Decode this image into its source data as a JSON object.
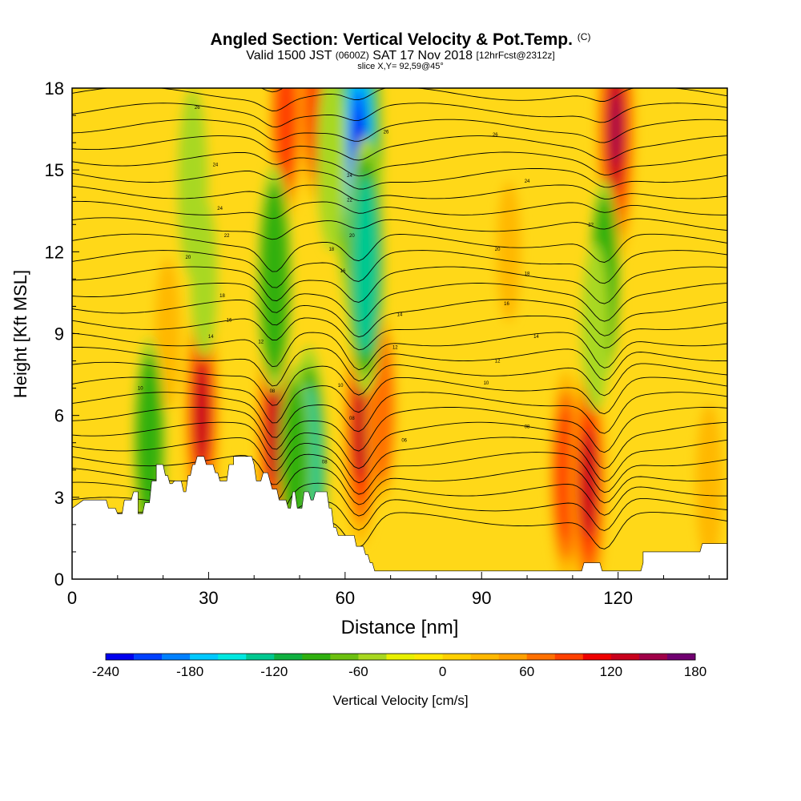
{
  "title": {
    "main": "Angled Section: Vertical Velocity & Pot.Temp.",
    "main_suffix": "(C)",
    "valid_prefix": "Valid 1500 JST",
    "valid_utc": "(0600Z)",
    "valid_date": "SAT 17 Nov 2018",
    "forecast": "[12hrFcst@2312z]",
    "slice": "slice X,Y= 92,59@45°"
  },
  "chart_data": {
    "type": "heatmap",
    "xlabel": "Distance [nm]",
    "ylabel": "Height [Kft MSL]",
    "xlim": [
      0,
      144
    ],
    "ylim": [
      0,
      18
    ],
    "x_ticks": [
      0,
      30,
      60,
      90,
      120
    ],
    "y_ticks": [
      0,
      3,
      6,
      9,
      12,
      15,
      18
    ],
    "colorbar": {
      "label": "Vertical Velocity [cm/s]",
      "min": -240,
      "max": 180,
      "step": 20,
      "tick_labels": [
        "-240",
        "-180",
        "-120",
        "-60",
        "0",
        "60",
        "120",
        "180"
      ],
      "tick_values": [
        -240,
        -180,
        -120,
        -60,
        0,
        60,
        120,
        180
      ],
      "colors": [
        "#0000ee",
        "#0040ff",
        "#0080ff",
        "#00c8ff",
        "#00e8e0",
        "#00c890",
        "#10b040",
        "#30b010",
        "#6cc010",
        "#a8d820",
        "#e8f000",
        "#ffe800",
        "#ffd000",
        "#ffb800",
        "#ffa000",
        "#ff7000",
        "#ff4000",
        "#ee0000",
        "#c8001c",
        "#a00048",
        "#700070"
      ]
    },
    "terrain_kft": [
      [
        0,
        2.6
      ],
      [
        2.5,
        2.9
      ],
      [
        7.5,
        2.9
      ],
      [
        8,
        2.6
      ],
      [
        9.5,
        2.6
      ],
      [
        10,
        2.4
      ],
      [
        11,
        2.4
      ],
      [
        11.5,
        2.9
      ],
      [
        13,
        2.9
      ],
      [
        13.5,
        3.2
      ],
      [
        14.5,
        3.2
      ],
      [
        14.5,
        2.4
      ],
      [
        15.5,
        2.4
      ],
      [
        16,
        2.8
      ],
      [
        17,
        2.8
      ],
      [
        17.5,
        3.6
      ],
      [
        18.5,
        3.6
      ],
      [
        18.5,
        4.2
      ],
      [
        20,
        4.2
      ],
      [
        20.5,
        3.8
      ],
      [
        21,
        3.8
      ],
      [
        21.5,
        3.5
      ],
      [
        22,
        3.5
      ],
      [
        22.5,
        3.6
      ],
      [
        24,
        3.6
      ],
      [
        24.5,
        3.2
      ],
      [
        25,
        3.2
      ],
      [
        25.5,
        3.8
      ],
      [
        26,
        3.8
      ],
      [
        26.5,
        4.2
      ],
      [
        27,
        4.2
      ],
      [
        27.5,
        4.5
      ],
      [
        29,
        4.5
      ],
      [
        29.5,
        4.2
      ],
      [
        31,
        4.2
      ],
      [
        31.5,
        3.9
      ],
      [
        32,
        3.9
      ],
      [
        32.5,
        3.6
      ],
      [
        34,
        3.6
      ],
      [
        34.5,
        4.2
      ],
      [
        35.5,
        4.2
      ],
      [
        35.5,
        4.5
      ],
      [
        39.5,
        4.5
      ],
      [
        40,
        4.2
      ],
      [
        40.5,
        3.6
      ],
      [
        41.5,
        3.6
      ],
      [
        42,
        3.9
      ],
      [
        43,
        3.9
      ],
      [
        43.5,
        3.6
      ],
      [
        44,
        3.3
      ],
      [
        45,
        3.3
      ],
      [
        45.5,
        2.9
      ],
      [
        47,
        2.9
      ],
      [
        47.5,
        2.6
      ],
      [
        48,
        2.6
      ],
      [
        48.5,
        3.2
      ],
      [
        49,
        3.2
      ],
      [
        49.5,
        2.6
      ],
      [
        50.5,
        2.6
      ],
      [
        51,
        3.2
      ],
      [
        52,
        3.2
      ],
      [
        52.5,
        2.9
      ],
      [
        53,
        2.9
      ],
      [
        53.5,
        3.2
      ],
      [
        56,
        3.2
      ],
      [
        56.5,
        2.6
      ],
      [
        57,
        2.6
      ],
      [
        57.5,
        1.9
      ],
      [
        58,
        1.9
      ],
      [
        58.5,
        1.6
      ],
      [
        62,
        1.6
      ],
      [
        62.5,
        1.2
      ],
      [
        64,
        1.2
      ],
      [
        64.5,
        0.9
      ],
      [
        65,
        0.9
      ],
      [
        65.5,
        0.6
      ],
      [
        66,
        0.6
      ],
      [
        66.5,
        0.3
      ],
      [
        112,
        0.3
      ],
      [
        112.5,
        0.6
      ],
      [
        116,
        0.6
      ],
      [
        116.5,
        0.3
      ],
      [
        125,
        0.3
      ],
      [
        125.5,
        0.6
      ],
      [
        125.5,
        1.0
      ],
      [
        138,
        1.0
      ],
      [
        138.5,
        1.3
      ],
      [
        144,
        1.3
      ]
    ],
    "updraft_cores": [
      {
        "x": 28.5,
        "y": 6.1,
        "value": 110
      },
      {
        "x": 44.5,
        "y": 5.5,
        "value": 120
      },
      {
        "x": 47,
        "y": 17.0,
        "value": 90
      },
      {
        "x": 53.5,
        "y": 17.5,
        "value": 80
      },
      {
        "x": 63.5,
        "y": 5.5,
        "value": 110
      },
      {
        "x": 68,
        "y": 6.3,
        "value": 70
      },
      {
        "x": 108.5,
        "y": 3.8,
        "value": 90
      },
      {
        "x": 113.5,
        "y": 3.5,
        "value": 120
      },
      {
        "x": 119.5,
        "y": 16.5,
        "value": 150
      },
      {
        "x": 21,
        "y": 9.0,
        "value": 30
      },
      {
        "x": 96,
        "y": 12.0,
        "value": 20
      },
      {
        "x": 140,
        "y": 3.5,
        "value": 40
      }
    ],
    "downdraft_cores": [
      {
        "x": 63,
        "y": 15.5,
        "value": -240
      },
      {
        "x": 64.5,
        "y": 11.5,
        "value": -140
      },
      {
        "x": 57,
        "y": 15.5,
        "value": -70
      },
      {
        "x": 44.5,
        "y": 11.0,
        "value": -110
      },
      {
        "x": 26.5,
        "y": 14.5,
        "value": -70
      },
      {
        "x": 29,
        "y": 11.0,
        "value": -40
      },
      {
        "x": 52,
        "y": 3.8,
        "value": -140
      },
      {
        "x": 49,
        "y": 4.2,
        "value": -80
      },
      {
        "x": 17,
        "y": 5.0,
        "value": -90
      },
      {
        "x": 117,
        "y": 11.0,
        "value": -80
      },
      {
        "x": 115,
        "y": 9.2,
        "value": -50
      }
    ],
    "isentrope_labels": [
      {
        "x": 27.5,
        "y": 17.3,
        "label": "26"
      },
      {
        "x": 31.5,
        "y": 15.2,
        "label": "24"
      },
      {
        "x": 32.5,
        "y": 13.6,
        "label": "24"
      },
      {
        "x": 34,
        "y": 12.6,
        "label": "22"
      },
      {
        "x": 25.5,
        "y": 11.8,
        "label": "20"
      },
      {
        "x": 33,
        "y": 10.4,
        "label": "18"
      },
      {
        "x": 34.5,
        "y": 9.5,
        "label": "16"
      },
      {
        "x": 30.5,
        "y": 8.9,
        "label": "14"
      },
      {
        "x": 41.5,
        "y": 8.7,
        "label": "12"
      },
      {
        "x": 15,
        "y": 7.0,
        "label": "10"
      },
      {
        "x": 44,
        "y": 6.9,
        "label": "08"
      },
      {
        "x": 55.5,
        "y": 4.3,
        "label": "08"
      },
      {
        "x": 61,
        "y": 13.9,
        "label": "22"
      },
      {
        "x": 61.5,
        "y": 12.6,
        "label": "20"
      },
      {
        "x": 57,
        "y": 12.1,
        "label": "18"
      },
      {
        "x": 59.5,
        "y": 11.3,
        "label": "16"
      },
      {
        "x": 69,
        "y": 16.4,
        "label": "26"
      },
      {
        "x": 61,
        "y": 14.8,
        "label": "24"
      },
      {
        "x": 72,
        "y": 9.7,
        "label": "14"
      },
      {
        "x": 71,
        "y": 8.5,
        "label": "12"
      },
      {
        "x": 59,
        "y": 7.1,
        "label": "10"
      },
      {
        "x": 61.5,
        "y": 5.9,
        "label": "08"
      },
      {
        "x": 73,
        "y": 5.1,
        "label": "06"
      },
      {
        "x": 93,
        "y": 16.3,
        "label": "26"
      },
      {
        "x": 100,
        "y": 14.6,
        "label": "24"
      },
      {
        "x": 93.5,
        "y": 12.1,
        "label": "20"
      },
      {
        "x": 100,
        "y": 11.2,
        "label": "18"
      },
      {
        "x": 95.5,
        "y": 10.1,
        "label": "16"
      },
      {
        "x": 102,
        "y": 8.9,
        "label": "14"
      },
      {
        "x": 93.5,
        "y": 8.0,
        "label": "12"
      },
      {
        "x": 91,
        "y": 7.2,
        "label": "10"
      },
      {
        "x": 100,
        "y": 5.6,
        "label": "08"
      },
      {
        "x": 114,
        "y": 13.0,
        "label": "22"
      }
    ]
  }
}
